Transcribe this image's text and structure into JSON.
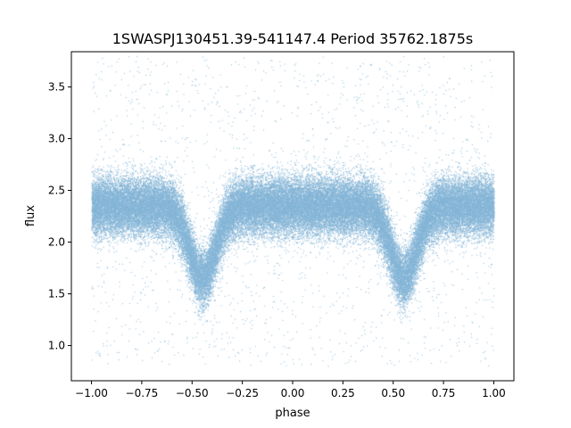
{
  "chart_data": {
    "type": "scatter",
    "title": "1SWASPJ130451.39-541147.4 Period 35762.1875s",
    "xlabel": "phase",
    "ylabel": "flux",
    "xlim": [
      -1.1,
      1.1
    ],
    "ylim": [
      0.66,
      3.84
    ],
    "grid": false,
    "legend": "none",
    "x_ticks": [
      -1.0,
      -0.75,
      -0.5,
      -0.25,
      0.0,
      0.25,
      0.5,
      0.75,
      1.0
    ],
    "x_tick_labels": [
      "−1.00",
      "−0.75",
      "−0.50",
      "−0.25",
      "0.00",
      "0.25",
      "0.50",
      "0.75",
      "1.00"
    ],
    "y_ticks": [
      1.0,
      1.5,
      2.0,
      2.5,
      3.0,
      3.5
    ],
    "y_tick_labels": [
      "1.0",
      "1.5",
      "2.0",
      "2.5",
      "3.0",
      "3.5"
    ],
    "marker_color": "#1f77b4",
    "series": [
      {
        "point_count": 60000,
        "description_of_shape": [
          {
            "phase": -1.0,
            "median_flux": 2.35,
            "spread": 0.13
          },
          {
            "phase": -0.55,
            "median_flux": 2.35,
            "spread": 0.13
          },
          {
            "phase": -0.45,
            "median_flux": 1.65,
            "spread": 0.12
          },
          {
            "phase": -0.35,
            "median_flux": 2.35,
            "spread": 0.13
          },
          {
            "phase": 0.45,
            "median_flux": 2.35,
            "spread": 0.13
          },
          {
            "phase": 0.55,
            "median_flux": 1.65,
            "spread": 0.12
          },
          {
            "phase": 0.65,
            "median_flux": 2.35,
            "spread": 0.13
          },
          {
            "phase": 1.0,
            "median_flux": 2.35,
            "spread": 0.13
          }
        ],
        "eclipse_centers": [
          -0.45,
          0.55
        ],
        "eclipse_min_flux": 1.65,
        "eclipse_half_width": 0.065,
        "outlier_flux_range": [
          0.8,
          3.8
        ]
      }
    ]
  }
}
